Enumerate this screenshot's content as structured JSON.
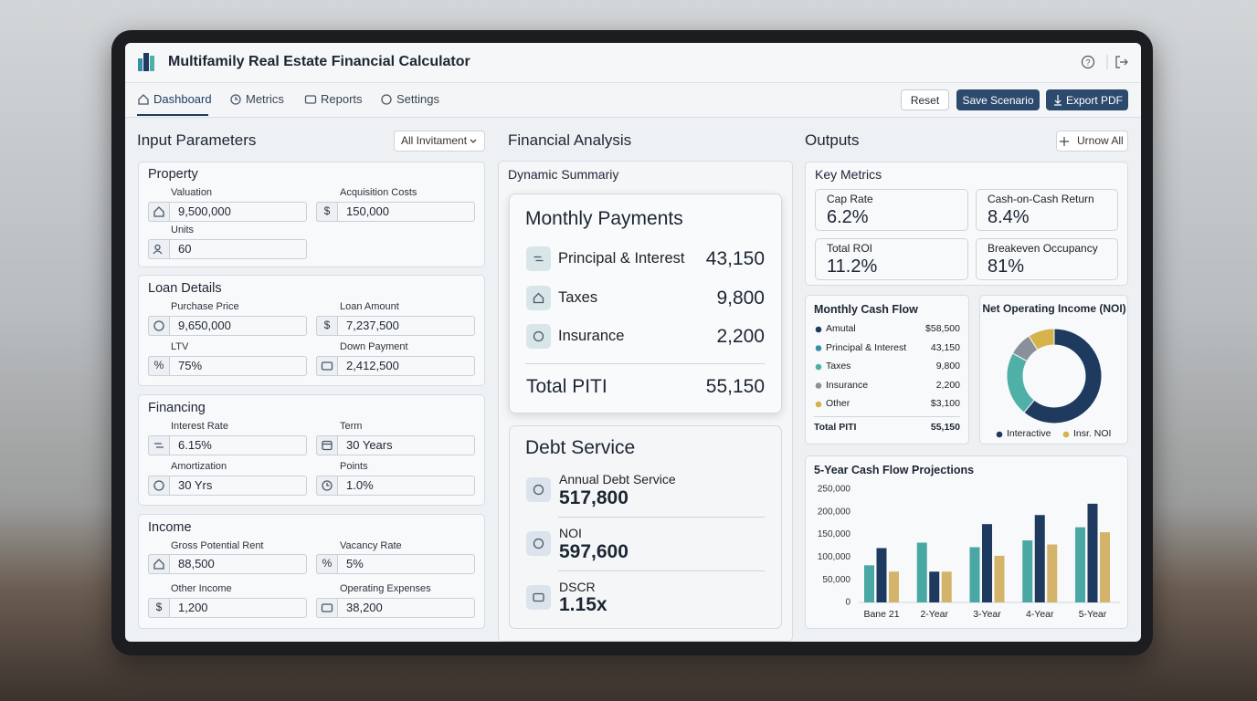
{
  "header": {
    "title": "Multifamily Real Estate Financial Calculator"
  },
  "tabs": [
    "Dashboard",
    "Metrics",
    "Reports",
    "Settings"
  ],
  "actions": [
    "Reset",
    "Save Scenario",
    "Export PDF"
  ],
  "inputs": {
    "title": "Input Parameters",
    "filter": "All Invitament",
    "sections": [
      {
        "title": "Property",
        "fields": [
          {
            "label": "Valuation",
            "value": "9,500,000"
          },
          {
            "label": "Acquisition Costs",
            "prefix": "$",
            "value": "150,000"
          },
          {
            "label": "Units",
            "value": "60"
          }
        ]
      },
      {
        "title": "Loan Details",
        "fields": [
          {
            "label": "Purchase Price",
            "value": "9,650,000"
          },
          {
            "label": "Loan Amount",
            "prefix": "$",
            "value": "7,237,500"
          },
          {
            "label": "LTV",
            "prefix": "%",
            "value": "75%"
          },
          {
            "label": "Down Payment",
            "value": "2,412,500"
          }
        ]
      },
      {
        "title": "Financing",
        "fields": [
          {
            "label": "Interest Rate",
            "value": "6.15%"
          },
          {
            "label": "Term",
            "value": "30 Years"
          },
          {
            "label": "Amortization",
            "value": "30 Yrs"
          },
          {
            "label": "Points",
            "value": "1.0%"
          }
        ]
      },
      {
        "title": "Income",
        "fields": [
          {
            "label": "Gross Potential Rent",
            "value": "88,500"
          },
          {
            "label": "Vacancy Rate",
            "prefix": "%",
            "value": "5%"
          },
          {
            "label": "Other Income",
            "prefix": "$",
            "value": "1,200"
          },
          {
            "label": "Operating Expenses",
            "value": "38,200"
          }
        ]
      }
    ]
  },
  "analysis": {
    "title": "Financial Analysis",
    "summary_title": "Dynamic Summariy",
    "monthly": {
      "title": "Monthly Payments",
      "items": [
        {
          "label": "Principal & Interest",
          "value": "43,150"
        },
        {
          "label": "Taxes",
          "value": "9,800"
        },
        {
          "label": "Insurance",
          "value": "2,200"
        }
      ],
      "total": {
        "label": "Total PITI",
        "value": "55,150"
      }
    },
    "debt": {
      "title": "Debt Service",
      "items": [
        {
          "label": "Annual Debt Service",
          "value": "517,800"
        },
        {
          "label": "NOI",
          "value": "597,600"
        },
        {
          "label": "DSCR",
          "value": "1.15x"
        }
      ]
    }
  },
  "outputs": {
    "title": "Outputs",
    "expand": "Urnow All",
    "key_metrics": {
      "title": "Key Metrics",
      "items": [
        {
          "label": "Cap Rate",
          "value": "6.2%"
        },
        {
          "label": "Cash-on-Cash Return",
          "value": "8.4%"
        },
        {
          "label": "Total ROI",
          "value": "11.2%"
        },
        {
          "label": "Breakeven Occupancy",
          "value": "81%"
        }
      ]
    },
    "cash_flow": {
      "title": "Monthly Cash Flow",
      "rows": [
        {
          "label": "Amutal",
          "value": "$58,500",
          "color": "#1f3a5f"
        },
        {
          "label": "Principal & Interest",
          "value": "43,150",
          "color": "#3a8fa8"
        },
        {
          "label": "Taxes",
          "value": "9,800",
          "color": "#4fb0a8"
        },
        {
          "label": "Insurance",
          "value": "2,200",
          "color": "#8a9099"
        },
        {
          "label": "Other",
          "value": "$3,100",
          "color": "#d4b24c"
        }
      ],
      "total": {
        "label": "Total PITI",
        "value": "55,150"
      }
    },
    "noi": {
      "type": "pie",
      "title": "Net Operating Income (NOI)",
      "values": [
        61,
        22,
        8,
        9
      ],
      "colors": [
        "#1f3a5f",
        "#4fb0a8",
        "#8a9099",
        "#d4b24c"
      ],
      "legend": [
        {
          "name": "Interactive",
          "color": "#1f3a5f"
        },
        {
          "name": "Insr. NOI",
          "color": "#d4b24c"
        }
      ]
    },
    "projections": {
      "type": "bar",
      "title": "5-Year Cash Flow Projections",
      "categories": [
        "Bane 21",
        "2-Year",
        "3-Year",
        "4-Year",
        "5-Year"
      ],
      "series": [
        {
          "color": "#4aa8a4",
          "values": [
            82000,
            132000,
            122000,
            137000,
            166000
          ]
        },
        {
          "color": "#1f3a5f",
          "values": [
            120000,
            68000,
            173000,
            193000,
            218000
          ]
        },
        {
          "color": "#d4b46a",
          "values": [
            68000,
            68000,
            103000,
            128000,
            155000
          ]
        }
      ],
      "ylim": [
        0,
        250000
      ],
      "yticks": [
        0,
        {
          "value": 50000,
          "label": "50,000"
        },
        {
          "value": 100000,
          "label": "100,000"
        },
        {
          "value": 150000,
          "label": "150,000"
        },
        {
          "value": 200000,
          "label": "200,000"
        },
        {
          "value": 250000,
          "label": "250,000"
        }
      ]
    }
  }
}
